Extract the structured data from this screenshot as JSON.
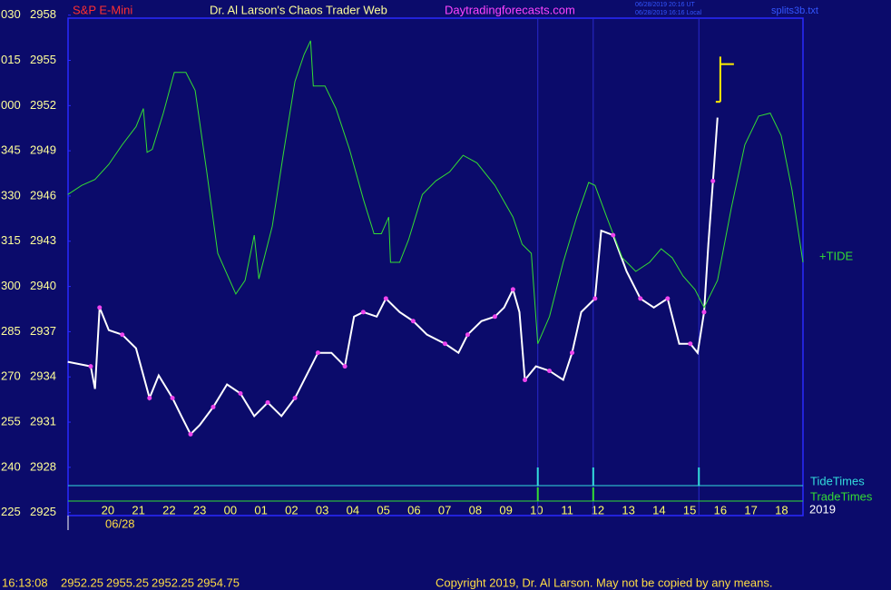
{
  "chart_data": {
    "type": "line",
    "title": "Dr. Al Larson's Chaos Trader Web",
    "website": "Daytradingforecasts.com",
    "timestamps": [
      "06/28/2019 20:16 UT",
      "06/28/2019 16:16 Local"
    ],
    "file_label": "splits3b.txt",
    "copyright": "Copyright 2019, Dr. Al Larson. May not be copied by any means.",
    "date_label": "06/28",
    "year_label": "2019",
    "categories": [
      "20",
      "21",
      "22",
      "23",
      "00",
      "01",
      "02",
      "03",
      "04",
      "05",
      "06",
      "07",
      "08",
      "09",
      "10",
      "11",
      "12",
      "13",
      "14",
      "15",
      "16",
      "17",
      "18"
    ],
    "xlim": [
      -1.3,
      22.7
    ],
    "ylim": [
      2924.8,
      2957.8
    ],
    "yticks": [
      2958,
      2955,
      2952,
      2949,
      2946,
      2943,
      2940,
      2937,
      2934,
      2931,
      2928,
      2925
    ],
    "y_left_labels": [
      "030",
      "015",
      "000",
      "345",
      "330",
      "315",
      "300",
      "285",
      "270",
      "255",
      "240",
      "225"
    ],
    "series": [
      {
        "name": "S&P E-Mini",
        "color": "#ffffff",
        "x": [
          -1.31,
          -0.56,
          -0.42,
          -0.27,
          0.03,
          0.47,
          0.92,
          1.36,
          1.66,
          2.11,
          2.4,
          2.7,
          3.0,
          3.44,
          3.89,
          4.33,
          4.78,
          5.22,
          5.67,
          6.11,
          6.56,
          6.86,
          7.3,
          7.74,
          8.04,
          8.34,
          8.78,
          9.08,
          9.53,
          9.97,
          10.42,
          11.01,
          11.45,
          11.75,
          12.2,
          12.64,
          12.94,
          13.23,
          13.44,
          13.62,
          13.98,
          14.42,
          14.87,
          15.16,
          15.46,
          15.91,
          16.11,
          16.5,
          16.94,
          17.39,
          17.83,
          18.28,
          18.66,
          19.02,
          19.26,
          19.47,
          19.61,
          19.76,
          19.91
        ],
        "values": [
          2935.0,
          2934.7,
          2933.2,
          2938.6,
          2937.1,
          2936.8,
          2935.9,
          2932.6,
          2934.1,
          2932.6,
          2931.4,
          2930.2,
          2930.8,
          2932.0,
          2933.5,
          2932.9,
          2931.4,
          2932.3,
          2931.4,
          2932.6,
          2934.4,
          2935.6,
          2935.6,
          2934.7,
          2938.0,
          2938.3,
          2938.0,
          2939.2,
          2938.3,
          2937.7,
          2936.8,
          2936.2,
          2935.6,
          2936.8,
          2937.7,
          2938.0,
          2938.6,
          2939.8,
          2938.3,
          2933.8,
          2934.7,
          2934.4,
          2933.8,
          2935.6,
          2938.3,
          2939.2,
          2943.7,
          2943.4,
          2941.0,
          2939.2,
          2938.6,
          2939.2,
          2936.2,
          2936.2,
          2935.6,
          2938.3,
          2942.8,
          2947.0,
          2951.2
        ]
      },
      {
        "name": "+TIDE",
        "color": "#33dd33",
        "x": [
          -1.31,
          -0.86,
          -0.42,
          0.03,
          0.47,
          0.92,
          1.16,
          1.28,
          1.45,
          1.81,
          2.17,
          2.55,
          2.85,
          3.23,
          3.59,
          4.18,
          4.48,
          4.78,
          4.93,
          5.37,
          5.73,
          6.11,
          6.41,
          6.62,
          6.71,
          7.09,
          7.45,
          7.89,
          8.34,
          8.69,
          8.93,
          9.17,
          9.23,
          9.53,
          9.82,
          10.27,
          10.71,
          11.16,
          11.6,
          12.05,
          12.64,
          13.23,
          13.53,
          13.83,
          14.04,
          14.42,
          14.87,
          15.31,
          15.7,
          15.91,
          16.29,
          16.8,
          17.24,
          17.69,
          18.07,
          18.43,
          18.78,
          19.17,
          19.47,
          19.91,
          20.36,
          20.8,
          21.25,
          21.63,
          21.99,
          22.34,
          22.7
        ],
        "values": [
          2946.1,
          2946.7,
          2947.1,
          2948.1,
          2949.4,
          2950.6,
          2951.8,
          2948.9,
          2949.1,
          2951.5,
          2954.2,
          2954.2,
          2953.0,
          2947.6,
          2942.2,
          2939.5,
          2940.4,
          2943.4,
          2940.5,
          2944.0,
          2948.8,
          2953.6,
          2955.4,
          2956.3,
          2953.3,
          2953.3,
          2951.8,
          2949.1,
          2945.8,
          2943.5,
          2943.5,
          2944.6,
          2941.6,
          2941.6,
          2943.1,
          2946.1,
          2947.0,
          2947.6,
          2948.7,
          2948.2,
          2946.7,
          2944.6,
          2942.8,
          2942.2,
          2936.2,
          2938.0,
          2941.6,
          2944.6,
          2946.9,
          2946.7,
          2944.6,
          2941.9,
          2941.0,
          2941.6,
          2942.5,
          2941.9,
          2940.7,
          2939.8,
          2938.6,
          2940.4,
          2945.2,
          2949.4,
          2951.3,
          2951.5,
          2950.0,
          2946.4,
          2941.6
        ]
      }
    ],
    "tide_times": {
      "name": "TideTimes",
      "color": "#33dddd",
      "x": [
        14.04,
        15.85,
        19.3
      ]
    },
    "trade_times": {
      "name": "TradeTimes",
      "color": "#33dd33",
      "x": [
        14.04,
        15.85
      ]
    },
    "last_bar": {
      "time": "16:13:08",
      "x": 20.0,
      "color": "#ffee00",
      "open": 2952.25,
      "high": 2955.25,
      "low": 2952.25,
      "close": 2954.75
    }
  }
}
